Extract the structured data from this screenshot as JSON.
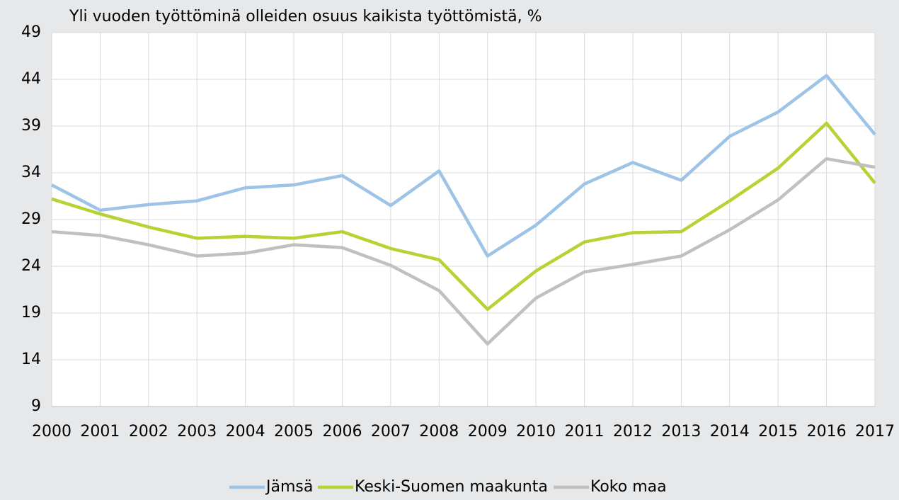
{
  "chart_data": {
    "type": "line",
    "title": "Yli vuoden työttöminä olleiden osuus kaikista työttömistä, %",
    "categories": [
      "2000",
      "2001",
      "2002",
      "2003",
      "2004",
      "2005",
      "2006",
      "2007",
      "2008",
      "2009",
      "2010",
      "2011",
      "2012",
      "2013",
      "2014",
      "2015",
      "2016",
      "2017"
    ],
    "series": [
      {
        "name": "Jämsä",
        "color": "#9dc3e6",
        "values": [
          32.7,
          30.0,
          30.6,
          31.0,
          32.4,
          32.7,
          33.7,
          30.5,
          34.2,
          25.1,
          28.4,
          32.8,
          35.1,
          33.2,
          37.9,
          40.5,
          44.4,
          38.1
        ]
      },
      {
        "name": "Keski-Suomen maakunta",
        "color": "#b5d334",
        "values": [
          31.2,
          29.6,
          28.2,
          27.0,
          27.2,
          27.0,
          27.7,
          25.9,
          24.7,
          19.4,
          23.5,
          26.6,
          27.6,
          27.7,
          31.0,
          34.5,
          39.3,
          32.9
        ]
      },
      {
        "name": "Koko maa",
        "color": "#c0c0c0",
        "values": [
          27.7,
          27.3,
          26.3,
          25.1,
          25.4,
          26.3,
          26.0,
          24.1,
          21.4,
          15.7,
          20.6,
          23.4,
          24.2,
          25.1,
          27.9,
          31.1,
          35.5,
          34.6
        ]
      }
    ],
    "ylim": [
      9,
      49
    ],
    "yticks": [
      9,
      14,
      19,
      24,
      29,
      34,
      39,
      44,
      49
    ],
    "grid": true,
    "legend": "bottom"
  }
}
